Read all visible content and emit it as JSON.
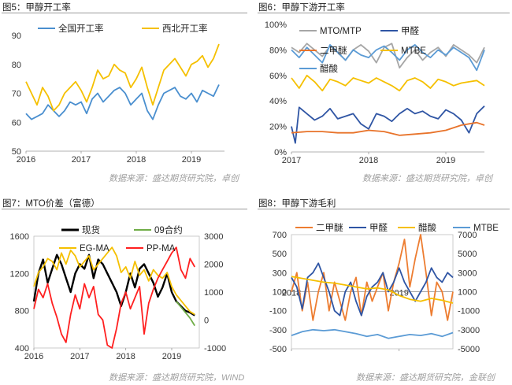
{
  "charts": [
    {
      "title": "图5：甲醇开工率",
      "source": "数据来源：盛达期货研究院，卓创",
      "type": "line",
      "x_ticks": [
        "2016",
        "2017",
        "2018",
        "2019"
      ],
      "y_ticks": [
        "50",
        "60",
        "70",
        "80",
        "90"
      ],
      "legend": [
        "全国开工率",
        "西北开工率"
      ],
      "colors": [
        "#4a8fcf",
        "#f5c000"
      ]
    },
    {
      "title": "图6：甲醇下游开工率",
      "source": "数据来源：盛达期货研究院，卓创",
      "type": "line",
      "x_ticks": [
        "2017",
        "2018",
        "2019"
      ],
      "y_ticks": [
        "0%",
        "20%",
        "40%",
        "60%",
        "80%",
        "100%"
      ],
      "legend": [
        "MTO/MTP",
        "甲醛",
        "二甲醚",
        "MTBE",
        "醋酸"
      ],
      "colors": [
        "#a6a6a6",
        "#2f55a4",
        "#e8732a",
        "#f5c000",
        "#5b9bd5"
      ]
    },
    {
      "title": "图7：MTO价差（富德）",
      "source": "数据来源：盛达期货研究院，WIND",
      "type": "line",
      "x_ticks": [
        "2016",
        "2017",
        "2018",
        "2019"
      ],
      "y_ticks_left": [
        "400",
        "800",
        "1200",
        "1600"
      ],
      "y_ticks_right": [
        "-1000",
        "0",
        "1000",
        "2000",
        "3000"
      ],
      "legend": [
        "现货",
        "09合约",
        "EG-MA",
        "PP-MA"
      ],
      "colors": [
        "#000000",
        "#70ad47",
        "#f5c000",
        "#ff2020"
      ]
    },
    {
      "title": "图8：甲醇下游毛利",
      "source": "数据来源：盛达期货研究院，金联创",
      "type": "line",
      "x_ticks": [
        "2018",
        "2019"
      ],
      "y_ticks_left": [
        "-500",
        "-300",
        "-100",
        "100",
        "300",
        "500",
        "700"
      ],
      "y_ticks_right": [
        "-5000",
        "-3000",
        "-1000",
        "1000",
        "3000",
        "5000",
        "7000"
      ],
      "legend": [
        "二甲醚",
        "甲醛",
        "醋酸",
        "MTBE"
      ],
      "colors": [
        "#ed7d31",
        "#2f55a4",
        "#f5c000",
        "#5b9bd5"
      ]
    }
  ],
  "chart_data": [
    {
      "type": "line",
      "title": "甲醇开工率",
      "x_range": [
        2016,
        2019.6
      ],
      "ylim": [
        50,
        90
      ],
      "series": [
        {
          "name": "全国开工率",
          "x": [
            2016,
            2016.1,
            2016.2,
            2016.3,
            2016.4,
            2016.5,
            2016.6,
            2016.7,
            2016.8,
            2016.9,
            2017,
            2017.1,
            2017.2,
            2017.3,
            2017.4,
            2017.5,
            2017.6,
            2017.7,
            2017.8,
            2017.9,
            2018,
            2018.1,
            2018.2,
            2018.3,
            2018.4,
            2018.5,
            2018.6,
            2018.7,
            2018.8,
            2018.9,
            2019,
            2019.1,
            2019.2,
            2019.3,
            2019.4,
            2019.5
          ],
          "y": [
            63,
            61,
            62,
            63,
            66,
            64,
            62,
            64,
            67,
            66,
            67,
            63,
            68,
            70,
            67,
            69,
            71,
            72,
            70,
            66,
            68,
            70,
            64,
            61,
            66,
            70,
            71,
            72,
            69,
            68,
            70,
            67,
            71,
            70,
            69,
            73
          ]
        },
        {
          "name": "西北开工率",
          "x": [
            2016,
            2016.1,
            2016.2,
            2016.3,
            2016.4,
            2016.5,
            2016.6,
            2016.7,
            2016.8,
            2016.9,
            2017,
            2017.1,
            2017.2,
            2017.3,
            2017.4,
            2017.5,
            2017.6,
            2017.7,
            2017.8,
            2017.9,
            2018,
            2018.1,
            2018.2,
            2018.3,
            2018.4,
            2018.5,
            2018.6,
            2018.7,
            2018.8,
            2018.9,
            2019,
            2019.1,
            2019.2,
            2019.3,
            2019.4,
            2019.5
          ],
          "y": [
            74,
            70,
            66,
            72,
            69,
            64,
            66,
            70,
            72,
            74,
            71,
            67,
            72,
            78,
            75,
            76,
            80,
            78,
            77,
            72,
            75,
            79,
            72,
            66,
            72,
            78,
            80,
            82,
            79,
            76,
            80,
            81,
            83,
            79,
            82,
            87
          ]
        }
      ]
    },
    {
      "type": "line",
      "title": "甲醇下游开工率",
      "x_range": [
        2017,
        2019.5
      ],
      "ylim": [
        0,
        100
      ],
      "series": [
        {
          "name": "MTO/MTP",
          "x": [
            2017,
            2017.1,
            2017.2,
            2017.3,
            2017.4,
            2017.5,
            2017.6,
            2017.7,
            2017.8,
            2017.9,
            2018,
            2018.1,
            2018.2,
            2018.3,
            2018.4,
            2018.5,
            2018.6,
            2018.7,
            2018.8,
            2018.9,
            2019,
            2019.1,
            2019.2,
            2019.3,
            2019.4,
            2019.5
          ],
          "y": [
            82,
            78,
            85,
            80,
            75,
            83,
            78,
            72,
            80,
            84,
            79,
            70,
            82,
            85,
            66,
            74,
            80,
            72,
            78,
            82,
            75,
            84,
            80,
            76,
            70,
            82
          ]
        },
        {
          "name": "甲醛",
          "x": [
            2017,
            2017.05,
            2017.1,
            2017.2,
            2017.3,
            2017.4,
            2017.5,
            2017.6,
            2017.7,
            2017.8,
            2017.9,
            2018,
            2018.1,
            2018.2,
            2018.3,
            2018.4,
            2018.5,
            2018.6,
            2018.7,
            2018.8,
            2018.9,
            2019,
            2019.1,
            2019.2,
            2019.3,
            2019.4,
            2019.5
          ],
          "y": [
            20,
            7,
            35,
            30,
            25,
            28,
            34,
            26,
            28,
            30,
            22,
            18,
            30,
            28,
            24,
            30,
            34,
            30,
            32,
            28,
            26,
            33,
            30,
            25,
            15,
            30,
            36
          ]
        },
        {
          "name": "二甲醚",
          "x": [
            2017,
            2017.2,
            2017.4,
            2017.6,
            2017.8,
            2018,
            2018.2,
            2018.4,
            2018.6,
            2018.8,
            2019,
            2019.2,
            2019.4,
            2019.5
          ],
          "y": [
            15,
            16,
            16,
            15,
            15,
            17,
            16,
            13,
            14,
            15,
            17,
            21,
            23,
            21
          ]
        },
        {
          "name": "MTBE",
          "x": [
            2017,
            2017.1,
            2017.2,
            2017.3,
            2017.4,
            2017.5,
            2017.6,
            2017.7,
            2017.8,
            2017.9,
            2018,
            2018.1,
            2018.2,
            2018.3,
            2018.4,
            2018.5,
            2018.6,
            2018.7,
            2018.8,
            2018.9,
            2019,
            2019.1,
            2019.2,
            2019.3,
            2019.4,
            2019.5
          ],
          "y": [
            58,
            50,
            60,
            55,
            48,
            57,
            55,
            52,
            58,
            56,
            54,
            58,
            55,
            52,
            48,
            56,
            58,
            55,
            50,
            57,
            55,
            52,
            54,
            55,
            56,
            52
          ]
        },
        {
          "name": "醋酸",
          "x": [
            2017,
            2017.1,
            2017.2,
            2017.3,
            2017.4,
            2017.5,
            2017.6,
            2017.7,
            2017.8,
            2017.9,
            2018,
            2018.1,
            2018.2,
            2018.3,
            2018.4,
            2018.5,
            2018.6,
            2018.7,
            2018.8,
            2018.9,
            2019,
            2019.1,
            2019.2,
            2019.3,
            2019.4,
            2019.5
          ],
          "y": [
            80,
            74,
            82,
            76,
            70,
            84,
            78,
            72,
            80,
            76,
            74,
            80,
            83,
            78,
            72,
            80,
            84,
            78,
            74,
            80,
            76,
            82,
            78,
            74,
            64,
            80
          ]
        }
      ]
    },
    {
      "type": "line",
      "title": "MTO价差（富德）",
      "x_range": [
        2016,
        2019.6
      ],
      "ylim_left": [
        400,
        1600
      ],
      "ylim_right": [
        -1000,
        3000
      ],
      "series": [
        {
          "name": "现货",
          "axis": "left",
          "x": [
            2016,
            2016.1,
            2016.2,
            2016.3,
            2016.4,
            2016.5,
            2016.6,
            2016.7,
            2016.8,
            2016.9,
            2017,
            2017.1,
            2017.2,
            2017.3,
            2017.4,
            2017.5,
            2017.6,
            2017.7,
            2017.8,
            2017.9,
            2018,
            2018.1,
            2018.2,
            2018.3,
            2018.4,
            2018.5,
            2018.6,
            2018.7,
            2018.8,
            2018.9,
            2019,
            2019.1,
            2019.2,
            2019.3,
            2019.4,
            2019.5
          ],
          "y": [
            900,
            1200,
            1350,
            1100,
            1250,
            1400,
            1300,
            1150,
            1000,
            1200,
            1300,
            1250,
            1400,
            1150,
            1350,
            1300,
            1200,
            1100,
            1000,
            850,
            1000,
            1200,
            1050,
            1250,
            1300,
            1200,
            1100,
            950,
            1050,
            1200,
            1000,
            900,
            850,
            800,
            780,
            750
          ]
        },
        {
          "name": "09合约",
          "axis": "left",
          "x": [
            2019.1,
            2019.2,
            2019.3,
            2019.4,
            2019.5
          ],
          "y": [
            900,
            840,
            780,
            720,
            640
          ]
        },
        {
          "name": "EG-MA",
          "axis": "right",
          "x": [
            2016,
            2016.1,
            2016.2,
            2016.3,
            2016.4,
            2016.5,
            2016.6,
            2016.7,
            2016.8,
            2016.9,
            2017,
            2017.1,
            2017.2,
            2017.3,
            2017.4,
            2017.5,
            2017.6,
            2017.7,
            2017.8,
            2017.9,
            2018,
            2018.1,
            2018.2,
            2018.3,
            2018.4,
            2018.5,
            2018.6,
            2018.7,
            2018.8,
            2018.9,
            2019,
            2019.1,
            2019.2,
            2019.3,
            2019.4,
            2019.5
          ],
          "y": [
            1200,
            1700,
            1900,
            2200,
            2100,
            1800,
            2400,
            2000,
            2500,
            2300,
            1900,
            2100,
            2300,
            1800,
            2000,
            2200,
            2400,
            2600,
            2300,
            1700,
            1900,
            1500,
            2100,
            1600,
            1800,
            1400,
            1800,
            1600,
            1500,
            1700,
            1200,
            900,
            700,
            500,
            300,
            200
          ]
        },
        {
          "name": "PP-MA",
          "axis": "right",
          "x": [
            2016,
            2016.1,
            2016.2,
            2016.3,
            2016.4,
            2016.5,
            2016.6,
            2016.7,
            2016.8,
            2016.9,
            2017,
            2017.1,
            2017.2,
            2017.3,
            2017.4,
            2017.5,
            2017.6,
            2017.7,
            2017.8,
            2017.9,
            2018,
            2018.1,
            2018.2,
            2018.3,
            2018.4,
            2018.5,
            2018.6,
            2018.7,
            2018.8,
            2018.9,
            2019,
            2019.1,
            2019.2,
            2019.3,
            2019.4,
            2019.5
          ],
          "y": [
            400,
            1100,
            800,
            1300,
            600,
            100,
            -500,
            -800,
            200,
            900,
            400,
            1300,
            800,
            1200,
            200,
            0,
            -900,
            -1000,
            -300,
            600,
            1000,
            400,
            800,
            1200,
            -500,
            600,
            1100,
            1500,
            1800,
            2100,
            2400,
            2600,
            1800,
            1500,
            2200,
            1900
          ]
        }
      ]
    },
    {
      "type": "line",
      "title": "甲醇下游毛利",
      "x_range": [
        2018,
        2019.5
      ],
      "ylim_left": [
        -500,
        700
      ],
      "ylim_right": [
        -5000,
        7000
      ],
      "series": [
        {
          "name": "二甲醚",
          "axis": "left",
          "x": [
            2018,
            2018.05,
            2018.1,
            2018.15,
            2018.2,
            2018.25,
            2018.3,
            2018.35,
            2018.4,
            2018.45,
            2018.5,
            2018.55,
            2018.6,
            2018.65,
            2018.7,
            2018.75,
            2018.8,
            2018.85,
            2018.9,
            2018.95,
            2019,
            2019.05,
            2019.1,
            2019.15,
            2019.2,
            2019.25,
            2019.3,
            2019.35,
            2019.4,
            2019.45,
            2019.5
          ],
          "y": [
            100,
            300,
            -100,
            200,
            -200,
            100,
            300,
            -100,
            200,
            0,
            -200,
            100,
            250,
            -150,
            200,
            0,
            150,
            300,
            -100,
            200,
            400,
            650,
            150,
            450,
            700,
            300,
            -150,
            200,
            100,
            -200,
            100
          ]
        },
        {
          "name": "甲醛",
          "axis": "left",
          "x": [
            2018,
            2018.05,
            2018.1,
            2018.15,
            2018.2,
            2018.25,
            2018.3,
            2018.35,
            2018.4,
            2018.45,
            2018.5,
            2018.55,
            2018.6,
            2018.65,
            2018.7,
            2018.75,
            2018.8,
            2018.85,
            2018.9,
            2018.95,
            2019,
            2019.05,
            2019.1,
            2019.15,
            2019.2,
            2019.25,
            2019.3,
            2019.35,
            2019.4,
            2019.45,
            2019.5
          ],
          "y": [
            250,
            150,
            -80,
            250,
            300,
            400,
            250,
            100,
            -100,
            -150,
            100,
            200,
            0,
            -150,
            50,
            150,
            200,
            300,
            100,
            200,
            350,
            200,
            100,
            0,
            100,
            200,
            350,
            250,
            200,
            300,
            250
          ]
        },
        {
          "name": "醋酸",
          "axis": "right",
          "x": [
            2018,
            2018.1,
            2018.2,
            2018.3,
            2018.4,
            2018.5,
            2018.6,
            2018.7,
            2018.8,
            2018.9,
            2019,
            2019.1,
            2019.2,
            2019.3,
            2019.4,
            2019.5
          ],
          "y": [
            2600,
            2400,
            2200,
            2000,
            1900,
            1700,
            1500,
            1300,
            1400,
            1200,
            600,
            200,
            0,
            300,
            100,
            -200
          ]
        },
        {
          "name": "MTBE",
          "axis": "right",
          "x": [
            2018,
            2018.1,
            2018.2,
            2018.3,
            2018.4,
            2018.5,
            2018.6,
            2018.7,
            2018.8,
            2018.9,
            2019,
            2019.1,
            2019.2,
            2019.3,
            2019.4,
            2019.5
          ],
          "y": [
            -3600,
            -3200,
            -3000,
            -3100,
            -3000,
            -3200,
            -3400,
            -3700,
            -3500,
            -3900,
            -3700,
            -3500,
            -3600,
            -3400,
            -3700,
            -3300
          ]
        }
      ]
    }
  ]
}
